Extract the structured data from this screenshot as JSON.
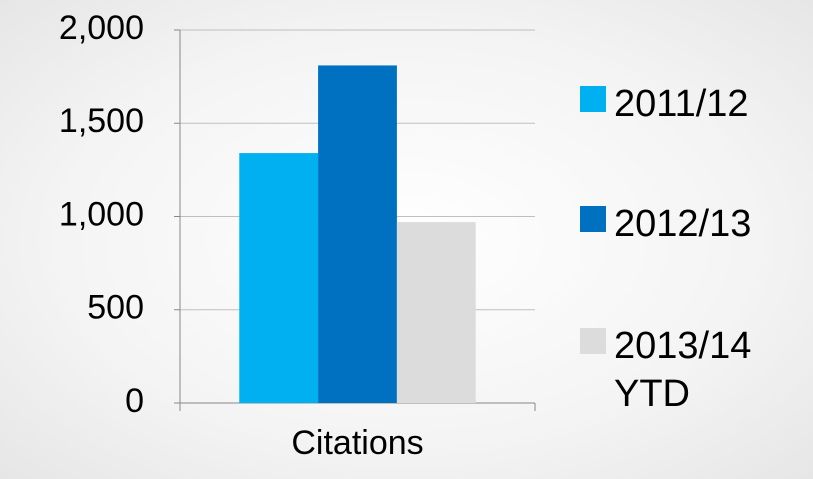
{
  "chart_data": {
    "type": "bar",
    "categories": [
      "Citations"
    ],
    "series": [
      {
        "name": "2011/12",
        "color": "#00b0f0",
        "values": [
          1340
        ]
      },
      {
        "name": "2012/13",
        "color": "#0070c0",
        "values": [
          1810
        ]
      },
      {
        "name": "2013/14 YTD",
        "color": "#dcdcdc",
        "values": [
          970
        ]
      }
    ],
    "ylim": [
      0,
      2000
    ],
    "yticks": [
      0,
      500,
      {
        "value": 1000,
        "label": "1,000"
      },
      {
        "value": 1500,
        "label": "1,500"
      },
      {
        "value": 2000,
        "label": "2,000"
      }
    ],
    "grid": true,
    "legend": "right"
  }
}
